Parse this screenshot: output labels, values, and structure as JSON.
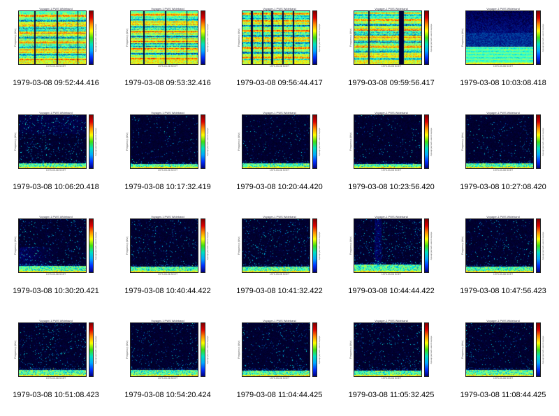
{
  "page": {
    "background": "#ffffff"
  },
  "colors": {
    "frame": "#222222",
    "colorbar_stops": [
      "#7f0000",
      "#dd0000",
      "#ff8c00",
      "#ffff00",
      "#40e010",
      "#00e0c0",
      "#00a8ff",
      "#0030ff",
      "#000080"
    ]
  },
  "plot": {
    "title": "Voyager-1 PWS Wideband",
    "ylabel": "Frequency (kHz)",
    "cbar_label": "relative power spectral density",
    "x_label": "1979-03-08 SCET"
  },
  "chart_data": {
    "type": "heatmap",
    "colormap": "jet",
    "layout": {
      "rows": 4,
      "cols": 5
    },
    "description": "Grid of 20 Voyager-1 PWS wideband spectrogram thumbnails (frequency vs time). First four thumbnails are intensely bright (green/yellow) with vertical data dropouts; remaining thumbnails are mostly dark (low power) with a bright emission band along the bottom edge.",
    "items": [
      {
        "caption": "1979-03-08 09:52:44.416",
        "pattern": "bright",
        "seed": 11,
        "gaps": [
          [
            0.24,
            0.01
          ],
          [
            0.57,
            0.01
          ],
          [
            0.88,
            0.008
          ]
        ]
      },
      {
        "caption": "1979-03-08 09:53:32.416",
        "pattern": "bright",
        "seed": 12,
        "gaps": [
          [
            0.2,
            0.01
          ],
          [
            0.52,
            0.012
          ],
          [
            0.84,
            0.008
          ]
        ]
      },
      {
        "caption": "1979-03-08 09:56:44.417",
        "pattern": "bright",
        "seed": 13,
        "gaps": [
          [
            0.14,
            0.012
          ],
          [
            0.3,
            0.01
          ],
          [
            0.44,
            0.014
          ],
          [
            0.6,
            0.01
          ],
          [
            0.76,
            0.012
          ]
        ]
      },
      {
        "caption": "1979-03-08 09:59:56.417",
        "pattern": "bright",
        "seed": 14,
        "gaps": [
          [
            0.22,
            0.01
          ],
          [
            0.7,
            0.035
          ]
        ]
      },
      {
        "caption": "1979-03-08 10:03:08.418",
        "pattern": "fade",
        "seed": 15
      },
      {
        "caption": "1979-03-08 10:06:20.418",
        "pattern": "dark",
        "seed": 21,
        "band": 0.1,
        "speckle": 0.06,
        "topnoise": true
      },
      {
        "caption": "1979-03-08 10:17:32.419",
        "pattern": "dark",
        "seed": 22,
        "band": 0.09,
        "speckle": 0.03
      },
      {
        "caption": "1979-03-08 10:20:44.420",
        "pattern": "dark",
        "seed": 23,
        "band": 0.1,
        "speckle": 0.03
      },
      {
        "caption": "1979-03-08 10:23:56.420",
        "pattern": "dark",
        "seed": 24,
        "band": 0.08,
        "speckle": 0.025
      },
      {
        "caption": "1979-03-08 10:27:08.420",
        "pattern": "dark",
        "seed": 25,
        "band": 0.1,
        "speckle": 0.03
      },
      {
        "caption": "1979-03-08 10:30:20.421",
        "pattern": "dark",
        "seed": 31,
        "band": 0.13,
        "speckle": 0.05,
        "haze": true
      },
      {
        "caption": "1979-03-08 10:40:44.422",
        "pattern": "dark",
        "seed": 32,
        "band": 0.11,
        "speckle": 0.04
      },
      {
        "caption": "1979-03-08 10:41:32.422",
        "pattern": "dark",
        "seed": 33,
        "band": 0.11,
        "speckle": 0.05
      },
      {
        "caption": "1979-03-08 10:44:44.422",
        "pattern": "dark",
        "seed": 34,
        "band": 0.15,
        "speckle": 0.05,
        "streak": 0.35
      },
      {
        "caption": "1979-03-08 10:47:56.423",
        "pattern": "dark",
        "seed": 35,
        "band": 0.11,
        "speckle": 0.04
      },
      {
        "caption": "1979-03-08 10:51:08.423",
        "pattern": "dark",
        "seed": 41,
        "band": 0.13,
        "speckle": 0.05
      },
      {
        "caption": "1979-03-08 10:54:20.424",
        "pattern": "dark",
        "seed": 42,
        "band": 0.13,
        "speckle": 0.04
      },
      {
        "caption": "1979-03-08 11:04:44.425",
        "pattern": "dark",
        "seed": 43,
        "band": 0.11,
        "speckle": 0.04
      },
      {
        "caption": "1979-03-08 11:05:32.425",
        "pattern": "dark",
        "seed": 44,
        "band": 0.11,
        "speckle": 0.04
      },
      {
        "caption": "1979-03-08 11:08:44.425",
        "pattern": "dark",
        "seed": 45,
        "band": 0.13,
        "speckle": 0.04
      }
    ]
  }
}
